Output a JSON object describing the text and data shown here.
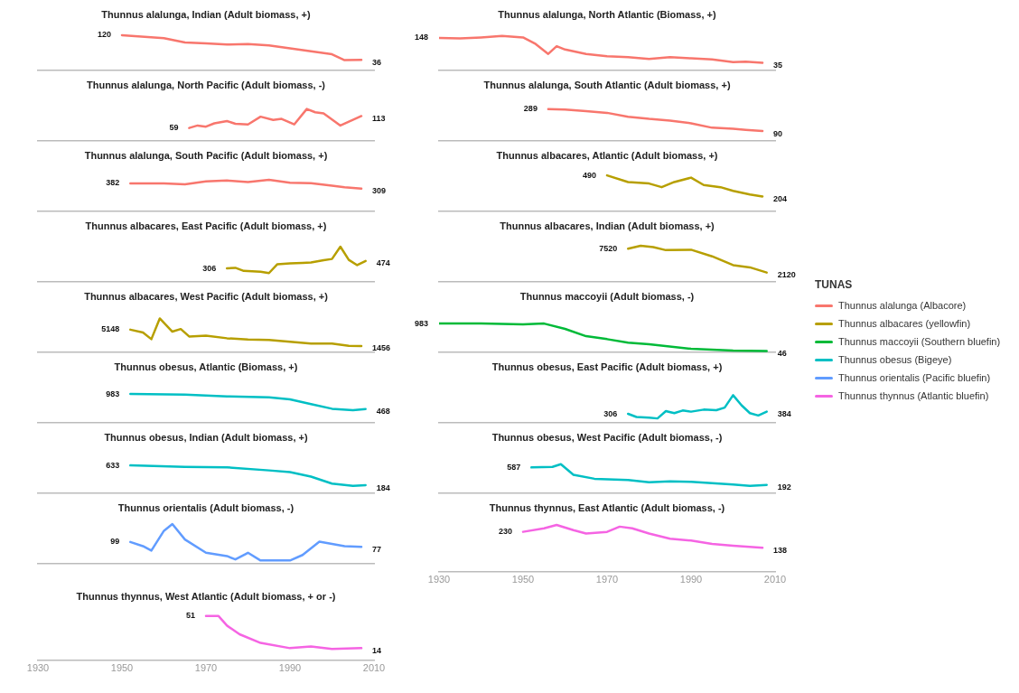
{
  "chart_data": [
    {
      "type": "line",
      "title": "Thunnus alalunga, Indian (Adult biomass, +)",
      "legend": "right",
      "legend_title": "TUNAS",
      "xlim": [
        1930,
        2010
      ],
      "xticks": [
        1930,
        1950,
        1970,
        1990,
        2010
      ],
      "tick_labels": false,
      "x": [
        1950,
        1960,
        1965,
        1970,
        1975,
        1980,
        1985,
        1990,
        1995,
        2000,
        2003,
        2007
      ],
      "series": [
        {
          "name": "Thunnus alalunga (Albacore)",
          "color": "#f8766d",
          "values": [
            120,
            110,
            95,
            92,
            88,
            90,
            85,
            75,
            65,
            55,
            35,
            36
          ],
          "value_labels": [
            "120",
            null,
            null,
            null,
            null,
            null,
            null,
            null,
            null,
            null,
            null,
            "36"
          ]
        }
      ]
    },
    {
      "type": "line",
      "title": "Thunnus alalunga, North Atlantic (Biomass, +)",
      "xlim": [
        1930,
        2010
      ],
      "xticks": [
        1930,
        1950,
        1970,
        1990,
        2010
      ],
      "tick_labels": false,
      "x": [
        1930,
        1935,
        1940,
        1945,
        1950,
        1953,
        1956,
        1958,
        1960,
        1965,
        1970,
        1975,
        1980,
        1985,
        1990,
        1995,
        2000,
        2003,
        2007
      ],
      "series": [
        {
          "color": "#f8766d",
          "values": [
            148,
            145,
            150,
            157,
            150,
            120,
            75,
            110,
            95,
            75,
            65,
            60,
            52,
            60,
            55,
            50,
            38,
            40,
            35
          ],
          "value_labels": [
            "148",
            null,
            null,
            null,
            null,
            null,
            null,
            null,
            null,
            null,
            null,
            null,
            null,
            null,
            null,
            null,
            null,
            null,
            "35"
          ]
        }
      ]
    },
    {
      "type": "line",
      "title": "Thunnus alalunga, North Pacific (Adult biomass, -)",
      "xlim": [
        1930,
        2010
      ],
      "xticks": [
        1930,
        1950,
        1970,
        1990,
        2010
      ],
      "tick_labels": false,
      "x": [
        1966,
        1968,
        1970,
        1972,
        1975,
        1977,
        1980,
        1983,
        1986,
        1988,
        1991,
        1994,
        1996,
        1998,
        2002,
        2007
      ],
      "series": [
        {
          "color": "#f8766d",
          "values": [
            59,
            70,
            65,
            80,
            90,
            78,
            75,
            110,
            95,
            100,
            75,
            145,
            130,
            125,
            70,
            113
          ],
          "value_labels": [
            "59",
            null,
            null,
            null,
            null,
            null,
            null,
            null,
            null,
            null,
            null,
            null,
            null,
            null,
            null,
            "113"
          ]
        }
      ]
    },
    {
      "type": "line",
      "title": "Thunnus alalunga, South Atlantic (Adult biomass, +)",
      "xlim": [
        1930,
        2010
      ],
      "xticks": [
        1930,
        1950,
        1970,
        1990,
        2010
      ],
      "tick_labels": false,
      "x": [
        1956,
        1960,
        1965,
        1970,
        1975,
        1980,
        1985,
        1990,
        1995,
        2000,
        2003,
        2007
      ],
      "series": [
        {
          "color": "#f8766d",
          "values": [
            289,
            285,
            270,
            255,
            220,
            200,
            185,
            160,
            120,
            110,
            100,
            90
          ],
          "value_labels": [
            "289",
            null,
            null,
            null,
            null,
            null,
            null,
            null,
            null,
            null,
            null,
            "90"
          ]
        }
      ]
    },
    {
      "type": "line",
      "title": "Thunnus alalunga, South Pacific (Adult biomass, +)",
      "xlim": [
        1930,
        2010
      ],
      "xticks": [
        1930,
        1950,
        1970,
        1990,
        2010
      ],
      "tick_labels": false,
      "x": [
        1952,
        1960,
        1965,
        1970,
        1975,
        1980,
        1985,
        1990,
        1995,
        2000,
        2003,
        2007
      ],
      "series": [
        {
          "color": "#f8766d",
          "values": [
            382,
            380,
            370,
            410,
            420,
            400,
            430,
            390,
            385,
            350,
            330,
            309
          ],
          "value_labels": [
            "382",
            null,
            null,
            null,
            null,
            null,
            null,
            null,
            null,
            null,
            null,
            "309"
          ]
        }
      ]
    },
    {
      "type": "line",
      "title": "Thunnus albacares, Atlantic (Adult biomass, +)",
      "xlim": [
        1930,
        2010
      ],
      "xticks": [
        1930,
        1950,
        1970,
        1990,
        2010
      ],
      "tick_labels": false,
      "x": [
        1970,
        1975,
        1980,
        1983,
        1986,
        1990,
        1993,
        1997,
        2000,
        2004,
        2007
      ],
      "series": [
        {
          "name": "Thunnus albacares (yellowfin)",
          "color": "#b79f00",
          "values": [
            490,
            400,
            380,
            330,
            400,
            460,
            360,
            330,
            280,
            230,
            204
          ],
          "value_labels": [
            "490",
            null,
            null,
            null,
            null,
            null,
            null,
            null,
            null,
            null,
            "204"
          ]
        }
      ]
    },
    {
      "type": "line",
      "title": "Thunnus albacares, East Pacific (Adult biomass, +)",
      "xlim": [
        1930,
        2010
      ],
      "xticks": [
        1930,
        1950,
        1970,
        1990,
        2010
      ],
      "tick_labels": false,
      "x": [
        1975,
        1977,
        1979,
        1983,
        1985,
        1987,
        1990,
        1993,
        1995,
        1998,
        2000,
        2002,
        2004,
        2006,
        2008
      ],
      "series": [
        {
          "color": "#b79f00",
          "values": [
            306,
            320,
            250,
            230,
            200,
            400,
            420,
            430,
            440,
            490,
            520,
            800,
            500,
            380,
            474
          ],
          "value_labels": [
            "306",
            null,
            null,
            null,
            null,
            null,
            null,
            null,
            null,
            null,
            null,
            null,
            null,
            null,
            "474"
          ]
        }
      ]
    },
    {
      "type": "line",
      "title": "Thunnus albacares, Indian (Adult biomass, +)",
      "xlim": [
        1930,
        2010
      ],
      "xticks": [
        1930,
        1950,
        1970,
        1990,
        2010
      ],
      "tick_labels": false,
      "x": [
        1975,
        1978,
        1981,
        1984,
        1990,
        1995,
        2000,
        2004,
        2008
      ],
      "series": [
        {
          "color": "#b79f00",
          "values": [
            7520,
            8200,
            7900,
            7200,
            7300,
            5800,
            3800,
            3300,
            2120
          ],
          "value_labels": [
            "7520",
            null,
            null,
            null,
            null,
            null,
            null,
            null,
            "2120"
          ]
        }
      ]
    },
    {
      "type": "line",
      "title": "Thunnus albacares, West Pacific (Adult biomass, +)",
      "xlim": [
        1930,
        2010
      ],
      "xticks": [
        1930,
        1950,
        1970,
        1990,
        2010
      ],
      "tick_labels": false,
      "x": [
        1952,
        1955,
        1957,
        1959,
        1962,
        1964,
        1966,
        1970,
        1975,
        1980,
        1985,
        1990,
        1995,
        2000,
        2004,
        2007
      ],
      "series": [
        {
          "color": "#b79f00",
          "values": [
            5148,
            4500,
            3000,
            7700,
            4700,
            5300,
            3600,
            3800,
            3200,
            2900,
            2800,
            2400,
            2000,
            2000,
            1500,
            1456
          ],
          "value_labels": [
            "5148",
            null,
            null,
            null,
            null,
            null,
            null,
            null,
            null,
            null,
            null,
            null,
            null,
            null,
            null,
            "1456"
          ]
        }
      ]
    },
    {
      "type": "line",
      "title": "Thunnus maccoyii (Adult biomass, -)",
      "xlim": [
        1930,
        2010
      ],
      "xticks": [
        1930,
        1950,
        1970,
        1990,
        2010
      ],
      "tick_labels": false,
      "x": [
        1930,
        1940,
        1950,
        1955,
        1960,
        1965,
        1970,
        1975,
        1980,
        1990,
        2000,
        2008
      ],
      "series": [
        {
          "name": "Thunnus maccoyii (Southern bluefin)",
          "color": "#00ba38",
          "values": [
            983,
            983,
            950,
            980,
            800,
            550,
            450,
            330,
            280,
            120,
            60,
            46
          ],
          "value_labels": [
            "983",
            null,
            null,
            null,
            null,
            null,
            null,
            null,
            null,
            null,
            null,
            "46"
          ]
        }
      ]
    },
    {
      "type": "line",
      "title": "Thunnus obesus, Atlantic (Biomass, +)",
      "xlim": [
        1930,
        2010
      ],
      "xticks": [
        1930,
        1950,
        1970,
        1990,
        2010
      ],
      "tick_labels": false,
      "x": [
        1952,
        1965,
        1975,
        1985,
        1990,
        1995,
        2000,
        2005,
        2008
      ],
      "series": [
        {
          "name": "Thunnus obesus (Bigeye)",
          "color": "#00bfc4",
          "values": [
            983,
            960,
            900,
            870,
            800,
            640,
            480,
            430,
            468
          ],
          "value_labels": [
            "983",
            null,
            null,
            null,
            null,
            null,
            null,
            null,
            "468"
          ]
        }
      ]
    },
    {
      "type": "line",
      "title": "Thunnus obesus, East Pacific (Adult biomass, +)",
      "xlim": [
        1930,
        2010
      ],
      "xticks": [
        1930,
        1950,
        1970,
        1990,
        2010
      ],
      "tick_labels": false,
      "x": [
        1975,
        1977,
        1980,
        1982,
        1984,
        1986,
        1988,
        1990,
        1993,
        1996,
        1998,
        2000,
        2002,
        2004,
        2006,
        2008
      ],
      "series": [
        {
          "color": "#00bfc4",
          "values": [
            306,
            200,
            180,
            150,
            400,
            330,
            420,
            380,
            450,
            430,
            520,
            940,
            600,
            330,
            250,
            384
          ],
          "value_labels": [
            "306",
            null,
            null,
            null,
            null,
            null,
            null,
            null,
            null,
            null,
            null,
            null,
            null,
            null,
            null,
            "384"
          ]
        }
      ]
    },
    {
      "type": "line",
      "title": "Thunnus obesus, Indian (Adult biomass, +)",
      "xlim": [
        1930,
        2010
      ],
      "xticks": [
        1930,
        1950,
        1970,
        1990,
        2010
      ],
      "tick_labels": false,
      "x": [
        1952,
        1965,
        1975,
        1985,
        1990,
        1995,
        2000,
        2005,
        2008
      ],
      "series": [
        {
          "color": "#00bfc4",
          "values": [
            633,
            600,
            590,
            520,
            480,
            380,
            220,
            170,
            184
          ],
          "value_labels": [
            "633",
            null,
            null,
            null,
            null,
            null,
            null,
            null,
            "184"
          ]
        }
      ]
    },
    {
      "type": "line",
      "title": "Thunnus obesus, West Pacific (Adult biomass, -)",
      "xlim": [
        1930,
        2010
      ],
      "xticks": [
        1930,
        1950,
        1970,
        1990,
        2010
      ],
      "tick_labels": false,
      "x": [
        1952,
        1957,
        1959,
        1962,
        1967,
        1975,
        1980,
        1985,
        1990,
        1995,
        2000,
        2004,
        2008
      ],
      "series": [
        {
          "color": "#00bfc4",
          "values": [
            587,
            600,
            660,
            420,
            330,
            300,
            250,
            270,
            260,
            230,
            200,
            170,
            192
          ],
          "value_labels": [
            "587",
            null,
            null,
            null,
            null,
            null,
            null,
            null,
            null,
            null,
            null,
            null,
            "192"
          ]
        }
      ]
    },
    {
      "type": "line",
      "title": "Thunnus orientalis (Adult biomass, -)",
      "xlim": [
        1930,
        2010
      ],
      "xticks": [
        1930,
        1950,
        1970,
        1990,
        2010
      ],
      "tick_labels": false,
      "x": [
        1952,
        1955,
        1957,
        1960,
        1962,
        1965,
        1970,
        1975,
        1977,
        1980,
        1983,
        1990,
        1993,
        1997,
        2000,
        2003,
        2007
      ],
      "series": [
        {
          "name": "Thunnus orientalis (Pacific bluefin)",
          "color": "#619cff",
          "values": [
            99,
            80,
            60,
            150,
            180,
            110,
            50,
            35,
            20,
            50,
            15,
            15,
            40,
            100,
            90,
            80,
            77
          ],
          "value_labels": [
            "99",
            null,
            null,
            null,
            null,
            null,
            null,
            null,
            null,
            null,
            null,
            null,
            null,
            null,
            null,
            null,
            "77"
          ]
        }
      ]
    },
    {
      "type": "line",
      "title": "Thunnus thynnus, East Atlantic (Adult biomass, -)",
      "xlim": [
        1930,
        2010
      ],
      "xticks": [
        1930,
        1950,
        1970,
        1990,
        2010
      ],
      "tick_labels": "x",
      "x": [
        1950,
        1955,
        1958,
        1962,
        1965,
        1970,
        1973,
        1976,
        1980,
        1985,
        1990,
        1995,
        2000,
        2007
      ],
      "series": [
        {
          "name": "Thunnus thynnus (Atlantic bluefin)",
          "color": "#f564e3",
          "values": [
            230,
            250,
            270,
            240,
            220,
            230,
            260,
            250,
            220,
            190,
            180,
            160,
            150,
            138
          ],
          "value_labels": [
            "230",
            null,
            null,
            null,
            null,
            null,
            null,
            null,
            null,
            null,
            null,
            null,
            null,
            "138"
          ]
        }
      ]
    },
    {
      "type": "line",
      "title": "Thunnus thynnus, West Atlantic (Adult biomass, + or -)",
      "xlim": [
        1930,
        2010
      ],
      "xticks": [
        1930,
        1950,
        1970,
        1990,
        2010
      ],
      "tick_labels": "x",
      "x": [
        1970,
        1973,
        1975,
        1978,
        1983,
        1990,
        1995,
        2000,
        2007
      ],
      "series": [
        {
          "color": "#f564e3",
          "values": [
            51,
            51,
            40,
            30,
            20,
            14,
            16,
            13,
            14
          ],
          "value_labels": [
            "51",
            null,
            null,
            null,
            null,
            null,
            null,
            null,
            "14"
          ]
        }
      ]
    }
  ]
}
